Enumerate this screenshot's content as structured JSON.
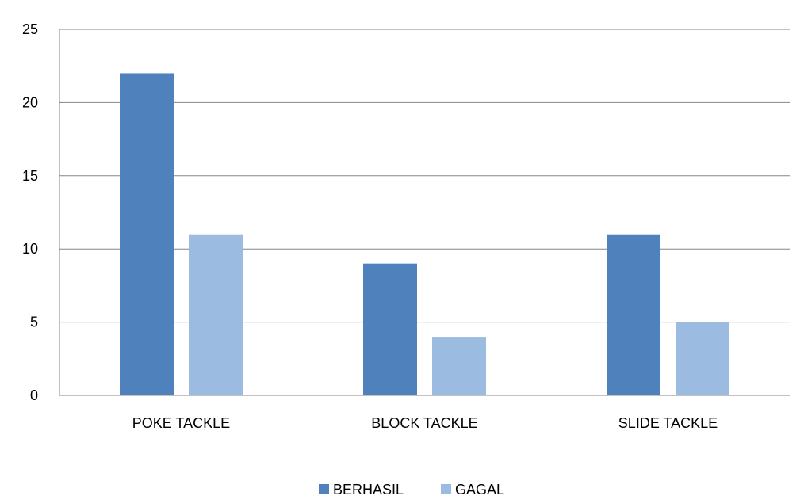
{
  "chart_data": {
    "type": "bar",
    "categories": [
      "POKE TACKLE",
      "BLOCK TACKLE",
      "SLIDE TACKLE"
    ],
    "series": [
      {
        "name": "BERHASIL",
        "values": [
          22,
          9,
          11
        ],
        "color": "#4F81BD"
      },
      {
        "name": "GAGAL",
        "values": [
          11,
          4,
          5
        ],
        "color": "#9BBBE0"
      }
    ],
    "ylim": [
      0,
      25
    ],
    "yticks": [
      0,
      5,
      10,
      15,
      20,
      25
    ],
    "grid": true,
    "legend": "bottom"
  }
}
